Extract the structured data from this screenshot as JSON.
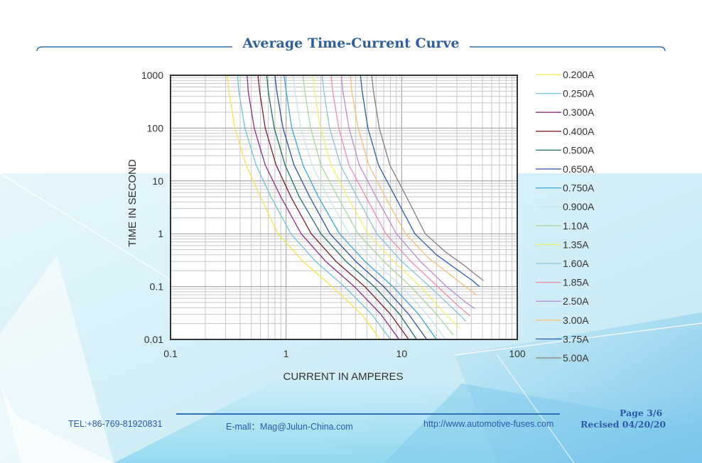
{
  "header": {
    "title": "Average Time-Current Curve"
  },
  "chart_data": {
    "type": "line",
    "title": "",
    "xlabel": "CURRENT IN AMPERES",
    "ylabel": "TIME IN SECOND",
    "x_scale": "log",
    "y_scale": "log",
    "xlim": [
      0.1,
      100
    ],
    "ylim": [
      0.01,
      1000
    ],
    "x_ticks": [
      "0.1",
      "1",
      "10",
      "100"
    ],
    "y_ticks": [
      "1000",
      "100",
      "10",
      "1",
      "0.1",
      "0.01"
    ],
    "grid": true,
    "legend_position": "right",
    "series": [
      {
        "name": "0.200A",
        "color": "#f2e84c",
        "points": [
          [
            0.31,
            1000
          ],
          [
            0.32,
            500
          ],
          [
            0.36,
            100
          ],
          [
            0.45,
            20
          ],
          [
            0.6,
            5
          ],
          [
            0.85,
            1
          ],
          [
            1.4,
            0.3
          ],
          [
            2.5,
            0.1
          ],
          [
            4.5,
            0.03
          ],
          [
            6.5,
            0.01
          ]
        ]
      },
      {
        "name": "0.250A",
        "color": "#6fc2d8",
        "points": [
          [
            0.38,
            1000
          ],
          [
            0.39,
            500
          ],
          [
            0.44,
            100
          ],
          [
            0.55,
            20
          ],
          [
            0.74,
            5
          ],
          [
            1.1,
            1
          ],
          [
            1.8,
            0.3
          ],
          [
            3.2,
            0.1
          ],
          [
            5.5,
            0.03
          ],
          [
            8,
            0.01
          ]
        ]
      },
      {
        "name": "0.300A",
        "color": "#8a2f86",
        "points": [
          [
            0.46,
            1000
          ],
          [
            0.47,
            500
          ],
          [
            0.53,
            100
          ],
          [
            0.66,
            20
          ],
          [
            0.9,
            5
          ],
          [
            1.35,
            1
          ],
          [
            2.2,
            0.3
          ],
          [
            3.9,
            0.1
          ],
          [
            6.6,
            0.03
          ],
          [
            9.5,
            0.01
          ]
        ]
      },
      {
        "name": "0.400A",
        "color": "#7a1f2c",
        "points": [
          [
            0.57,
            1000
          ],
          [
            0.59,
            500
          ],
          [
            0.66,
            100
          ],
          [
            0.82,
            20
          ],
          [
            1.1,
            5
          ],
          [
            1.65,
            1
          ],
          [
            2.7,
            0.3
          ],
          [
            4.8,
            0.1
          ],
          [
            8,
            0.03
          ],
          [
            11.5,
            0.01
          ]
        ]
      },
      {
        "name": "0.500A",
        "color": "#1f6d6a",
        "points": [
          [
            0.68,
            1000
          ],
          [
            0.7,
            500
          ],
          [
            0.79,
            100
          ],
          [
            0.98,
            20
          ],
          [
            1.3,
            5
          ],
          [
            2,
            1
          ],
          [
            3.3,
            0.3
          ],
          [
            5.8,
            0.1
          ],
          [
            9.6,
            0.03
          ],
          [
            13.5,
            0.01
          ]
        ]
      },
      {
        "name": "0.650A",
        "color": "#2c4fa3",
        "points": [
          [
            0.8,
            1000
          ],
          [
            0.83,
            500
          ],
          [
            0.94,
            100
          ],
          [
            1.17,
            20
          ],
          [
            1.6,
            5
          ],
          [
            2.4,
            1
          ],
          [
            4,
            0.3
          ],
          [
            7,
            0.1
          ],
          [
            11.5,
            0.03
          ],
          [
            16.5,
            0.01
          ]
        ]
      },
      {
        "name": "0.750A",
        "color": "#3aa8d9",
        "points": [
          [
            0.96,
            1000
          ],
          [
            1,
            500
          ],
          [
            1.12,
            100
          ],
          [
            1.4,
            20
          ],
          [
            1.9,
            5
          ],
          [
            2.9,
            1
          ],
          [
            4.8,
            0.3
          ],
          [
            8.4,
            0.1
          ],
          [
            14,
            0.03
          ],
          [
            20,
            0.01
          ]
        ]
      },
      {
        "name": "0.900A",
        "color": "#c9e6ea",
        "points": [
          [
            1.15,
            1000
          ],
          [
            1.19,
            500
          ],
          [
            1.34,
            100
          ],
          [
            1.68,
            20
          ],
          [
            2.3,
            5
          ],
          [
            3.5,
            1
          ],
          [
            5.8,
            0.3
          ],
          [
            10,
            0.1
          ],
          [
            16.5,
            0.03
          ],
          [
            24,
            0.01
          ]
        ]
      },
      {
        "name": "1.10A",
        "color": "#a9d8a0",
        "points": [
          [
            1.4,
            1000
          ],
          [
            1.45,
            500
          ],
          [
            1.63,
            100
          ],
          [
            2,
            20
          ],
          [
            2.8,
            5
          ],
          [
            4.2,
            1
          ],
          [
            7,
            0.3
          ],
          [
            12,
            0.1
          ],
          [
            20,
            0.03
          ],
          [
            28,
            0.012
          ]
        ]
      },
      {
        "name": "1.35A",
        "color": "#eef26a",
        "points": [
          [
            1.7,
            1000
          ],
          [
            1.76,
            500
          ],
          [
            1.98,
            100
          ],
          [
            2.45,
            20
          ],
          [
            3.4,
            5
          ],
          [
            5.1,
            1
          ],
          [
            8.5,
            0.3
          ],
          [
            14.5,
            0.1
          ],
          [
            24,
            0.03
          ],
          [
            32,
            0.016
          ]
        ]
      },
      {
        "name": "1.60A",
        "color": "#8cc3dc",
        "points": [
          [
            2.05,
            1000
          ],
          [
            2.12,
            500
          ],
          [
            2.38,
            100
          ],
          [
            2.95,
            20
          ],
          [
            4.1,
            5
          ],
          [
            6.1,
            1
          ],
          [
            10,
            0.3
          ],
          [
            17.5,
            0.1
          ],
          [
            29,
            0.035
          ],
          [
            36,
            0.022
          ]
        ]
      },
      {
        "name": "1.85A",
        "color": "#f08bb0",
        "points": [
          [
            2.45,
            1000
          ],
          [
            2.53,
            500
          ],
          [
            2.85,
            100
          ],
          [
            3.5,
            20
          ],
          [
            4.9,
            5
          ],
          [
            7.3,
            1
          ],
          [
            12,
            0.3
          ],
          [
            20.5,
            0.1
          ],
          [
            32,
            0.04
          ],
          [
            39,
            0.028
          ]
        ]
      },
      {
        "name": "2.50A",
        "color": "#b98ed2",
        "points": [
          [
            3,
            1000
          ],
          [
            3.1,
            500
          ],
          [
            3.5,
            100
          ],
          [
            4.3,
            20
          ],
          [
            6,
            5
          ],
          [
            9,
            1
          ],
          [
            14.5,
            0.3
          ],
          [
            24.5,
            0.1
          ],
          [
            36,
            0.05
          ],
          [
            43,
            0.038
          ]
        ]
      },
      {
        "name": "3.00A",
        "color": "#f5c07a",
        "points": [
          [
            3.6,
            1000
          ],
          [
            3.7,
            500
          ],
          [
            4.2,
            100
          ],
          [
            5.2,
            20
          ],
          [
            7.2,
            5
          ],
          [
            10.8,
            1
          ],
          [
            17,
            0.35
          ],
          [
            28,
            0.15
          ],
          [
            38,
            0.09
          ],
          [
            44,
            0.07
          ]
        ]
      },
      {
        "name": "3.75A",
        "color": "#2f5db0",
        "points": [
          [
            4.4,
            1000
          ],
          [
            4.55,
            500
          ],
          [
            5.1,
            100
          ],
          [
            6.3,
            20
          ],
          [
            8.8,
            5
          ],
          [
            13,
            1
          ],
          [
            20,
            0.4
          ],
          [
            31,
            0.2
          ],
          [
            41,
            0.13
          ],
          [
            47,
            0.1
          ]
        ]
      },
      {
        "name": "5.00A",
        "color": "#8c7a74",
        "points": [
          [
            5.5,
            1000
          ],
          [
            5.7,
            500
          ],
          [
            6.4,
            100
          ],
          [
            7.9,
            20
          ],
          [
            11,
            5
          ],
          [
            16,
            1
          ],
          [
            24,
            0.45
          ],
          [
            35,
            0.25
          ],
          [
            45,
            0.16
          ],
          [
            51,
            0.13
          ]
        ]
      }
    ]
  },
  "footer": {
    "tel": "TEL:+86-769-81920831",
    "email": "E-mall：Mag@Julun-China.com",
    "url": "http://www.automotive-fuses.com",
    "page": "Page 3/6",
    "revised": "Recised 04/20/20"
  }
}
